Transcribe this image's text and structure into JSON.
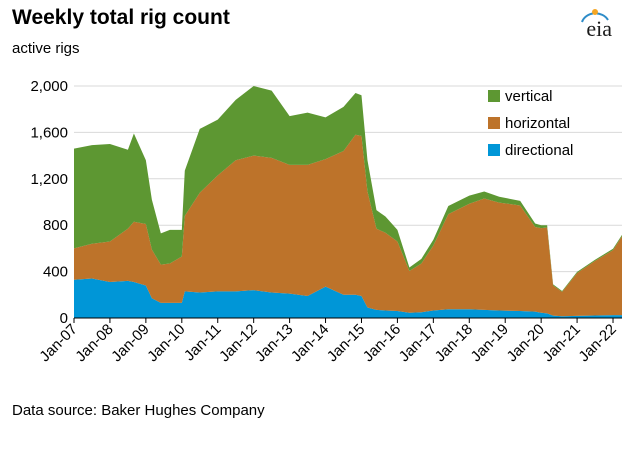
{
  "header": {
    "title": "Weekly total rig count",
    "subtitle": "active rigs",
    "logo_text": "eia"
  },
  "footer": {
    "source": "Data source: Baker Hughes Company"
  },
  "colors": {
    "vertical": "#5d9732",
    "horizontal": "#bd732a",
    "directional": "#0096d7",
    "logo_arc": "#2e8cc8",
    "logo_sun": "#f5a623"
  },
  "chart_data": {
    "type": "area",
    "stacked": true,
    "title": "Weekly total rig count",
    "ylabel": "active rigs",
    "xlabel": "",
    "ylim": [
      0,
      2000
    ],
    "yticks": [
      0,
      400,
      800,
      1200,
      1600,
      2000
    ],
    "ytick_labels": [
      "0",
      "400",
      "800",
      "1,200",
      "1,600",
      "2,000"
    ],
    "xlim": [
      "2007-01",
      "2022-04"
    ],
    "xticks": [
      "Jan-07",
      "Jan-08",
      "Jan-09",
      "Jan-10",
      "Jan-11",
      "Jan-12",
      "Jan-13",
      "Jan-14",
      "Jan-15",
      "Jan-16",
      "Jan-17",
      "Jan-18",
      "Jan-19",
      "Jan-20",
      "Jan-21",
      "Jan-22"
    ],
    "grid": "horizontal",
    "legend": "top-right",
    "x": [
      "2007-01",
      "2007-07",
      "2008-01",
      "2008-07",
      "2008-09",
      "2009-01",
      "2009-03",
      "2009-06",
      "2009-09",
      "2010-01",
      "2010-02",
      "2010-07",
      "2011-01",
      "2011-07",
      "2012-01",
      "2012-07",
      "2013-01",
      "2013-07",
      "2014-01",
      "2014-07",
      "2014-11",
      "2015-01",
      "2015-03",
      "2015-06",
      "2015-09",
      "2016-01",
      "2016-05",
      "2016-09",
      "2017-01",
      "2017-06",
      "2018-01",
      "2018-06",
      "2018-11",
      "2019-06",
      "2019-11",
      "2020-01",
      "2020-03",
      "2020-05",
      "2020-08",
      "2021-01",
      "2021-07",
      "2022-01",
      "2022-04"
    ],
    "series": [
      {
        "name": "directional",
        "values": [
          330,
          340,
          310,
          320,
          310,
          280,
          170,
          130,
          130,
          130,
          230,
          220,
          230,
          230,
          240,
          220,
          210,
          190,
          270,
          200,
          200,
          190,
          90,
          70,
          65,
          60,
          45,
          50,
          65,
          75,
          75,
          70,
          65,
          60,
          55,
          45,
          40,
          20,
          15,
          18,
          22,
          25,
          25
        ]
      },
      {
        "name": "horizontal",
        "values": [
          270,
          300,
          350,
          450,
          520,
          530,
          420,
          330,
          340,
          400,
          650,
          860,
          1000,
          1130,
          1160,
          1160,
          1110,
          1130,
          1100,
          1240,
          1380,
          1380,
          1000,
          700,
          670,
          600,
          360,
          420,
          560,
          820,
          910,
          960,
          930,
          910,
          730,
          730,
          740,
          260,
          210,
          370,
          470,
          560,
          680
        ]
      },
      {
        "name": "vertical",
        "values": [
          860,
          850,
          840,
          680,
          760,
          550,
          430,
          270,
          290,
          230,
          390,
          550,
          480,
          520,
          600,
          580,
          420,
          450,
          360,
          380,
          360,
          350,
          270,
          160,
          140,
          100,
          30,
          40,
          50,
          70,
          70,
          60,
          50,
          40,
          30,
          25,
          20,
          10,
          8,
          10,
          10,
          12,
          12
        ]
      }
    ]
  }
}
